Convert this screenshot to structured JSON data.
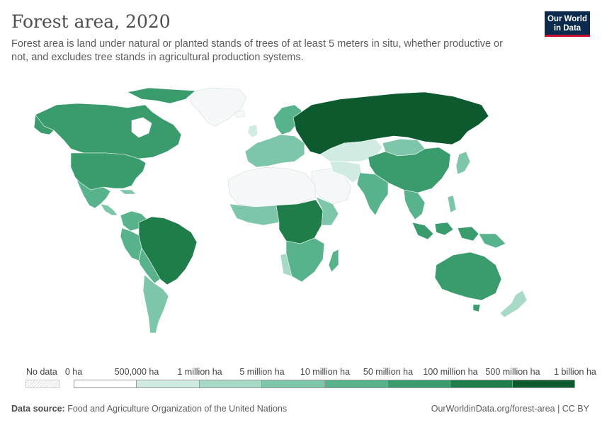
{
  "header": {
    "title": "Forest area, 2020",
    "subtitle": "Forest area is land under natural or planted stands of trees of at least 5 meters in situ, whether productive or not, and excludes tree stands in agricultural production systems."
  },
  "logo": {
    "line1": "Our World",
    "line2": "in Data"
  },
  "legend": {
    "no_data_label": "No data",
    "ticks": [
      "0 ha",
      "500,000 ha",
      "1 million ha",
      "5 million ha",
      "10 million ha",
      "50 million ha",
      "100 million ha",
      "500 million ha",
      "1 billion ha"
    ],
    "colors": [
      "#ffffff",
      "#e6f0f8",
      "#d0ece2",
      "#a6d9c6",
      "#7ec6a9",
      "#58b38c",
      "#3a9b6d",
      "#1f7d49",
      "#0c5a2e"
    ],
    "no_data_color": "#eeeeee"
  },
  "footer": {
    "source_label": "Data source:",
    "source_text": "Food and Agriculture Organization of the United Nations",
    "url_text": "OurWorldinData.org/forest-area | CC BY"
  }
}
